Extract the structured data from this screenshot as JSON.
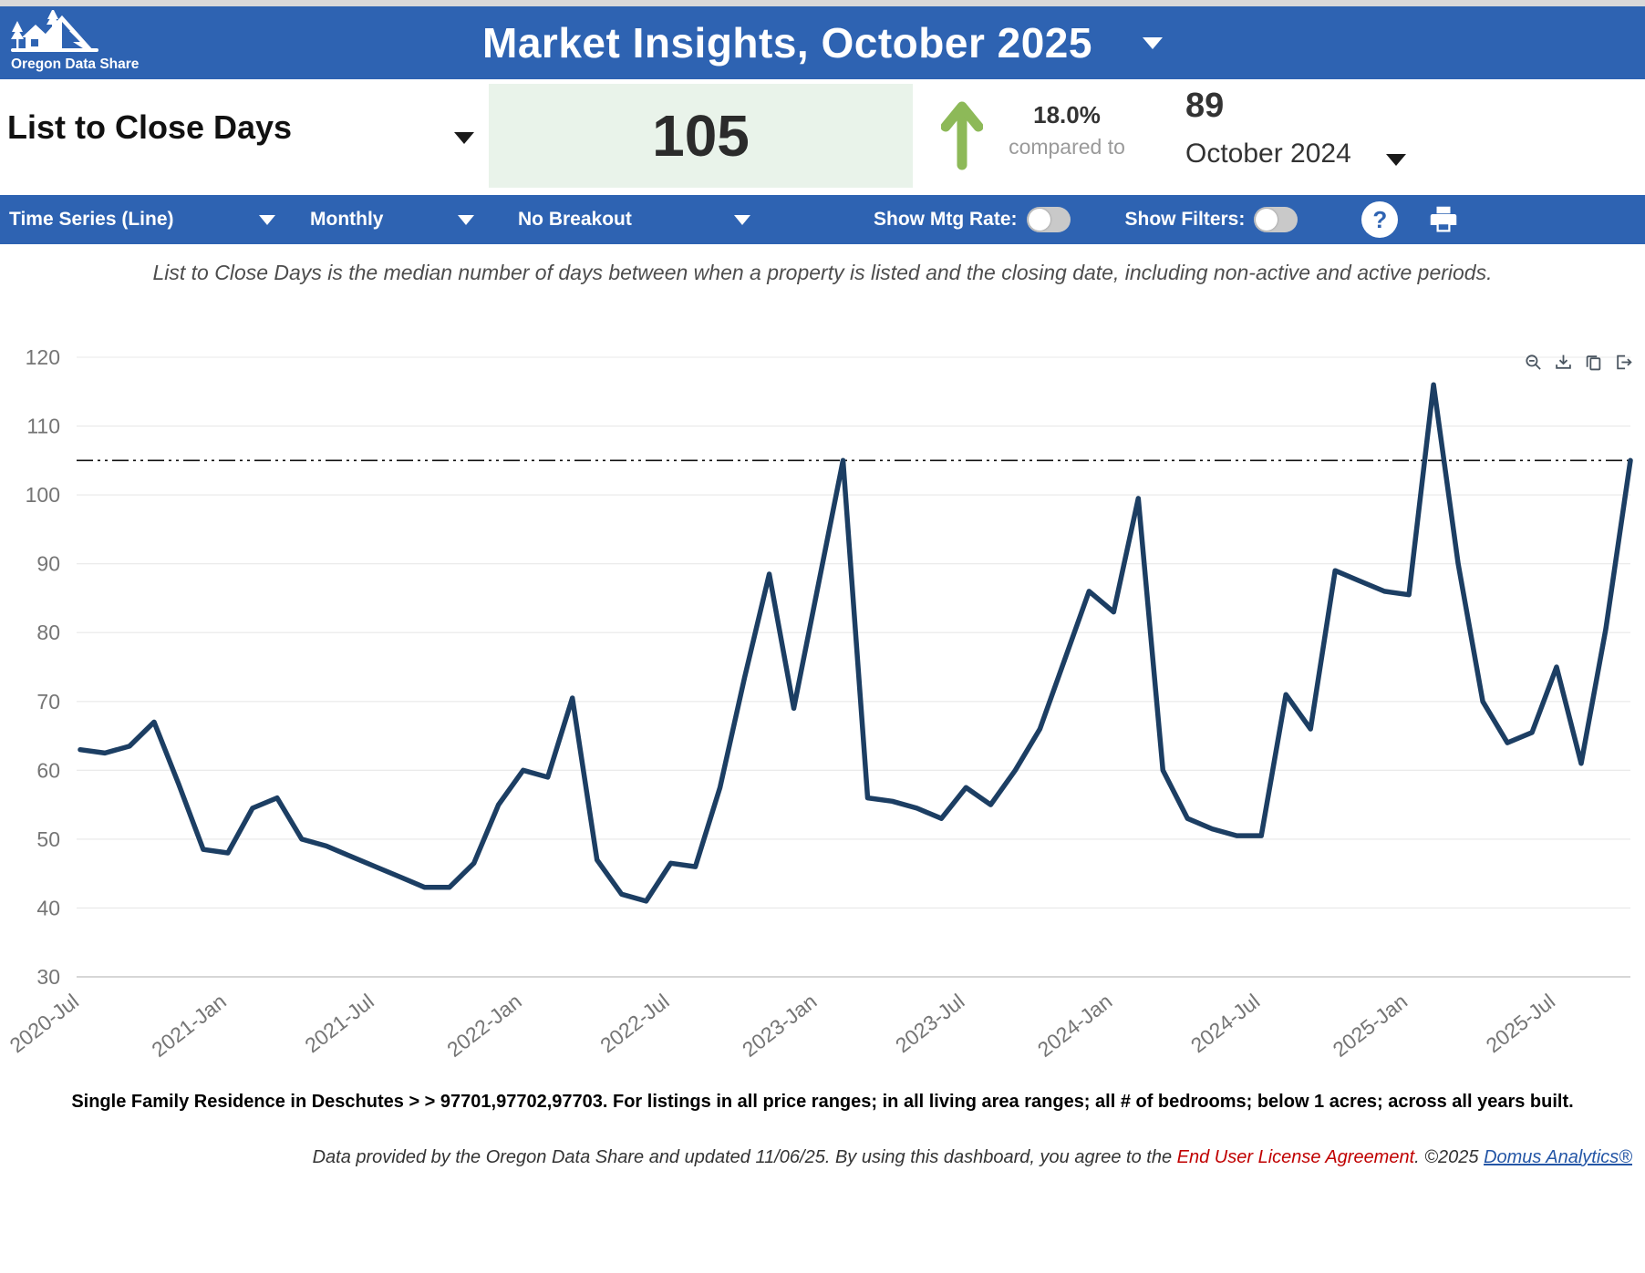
{
  "header": {
    "logo_text": "Oregon Data Share",
    "title": "Market Insights, October 2025"
  },
  "metric": {
    "name": "List to Close Days",
    "current_value": "105",
    "change_pct": "18.0%",
    "compared_label": "compared to",
    "previous_value": "89",
    "previous_period": "October 2024"
  },
  "toolbar": {
    "chart_type": "Time Series (Line)",
    "frequency": "Monthly",
    "breakout": "No Breakout",
    "show_mtg_rate_label": "Show Mtg Rate:",
    "show_filters_label": "Show Filters:",
    "help_label": "?"
  },
  "description": "List to Close Days is the median number of days between when a property is listed and the closing date, including non-active and active periods.",
  "chart_data": {
    "type": "line",
    "title": "",
    "xlabel": "",
    "ylabel": "",
    "ylim": [
      30,
      120
    ],
    "yticks": [
      30,
      40,
      50,
      60,
      70,
      80,
      90,
      100,
      110,
      120
    ],
    "grid": true,
    "legend_position": "none",
    "start_month": "2020-07",
    "x_tick_labels": [
      "2020-Jul",
      "2021-Jan",
      "2021-Jul",
      "2022-Jan",
      "2022-Jul",
      "2023-Jan",
      "2023-Jul",
      "2024-Jan",
      "2024-Jul",
      "2025-Jan",
      "2025-Jul"
    ],
    "x_tick_interval": 6,
    "reference_line_value": 105,
    "series": [
      {
        "name": "List to Close Days (median)",
        "color": "#1c3e63",
        "values": [
          63,
          62.5,
          63.5,
          67,
          58,
          48.5,
          48,
          54.5,
          56,
          50,
          49,
          47.5,
          46,
          44.5,
          43,
          43,
          46.5,
          55,
          60,
          59,
          70.5,
          47,
          42,
          41,
          46.5,
          46,
          57.5,
          73.5,
          88.5,
          69,
          87,
          105,
          56,
          55.5,
          54.5,
          53,
          57.5,
          55,
          60,
          66,
          76,
          86,
          83,
          99.5,
          60,
          53,
          51.5,
          50.5,
          50.5,
          71,
          66,
          89,
          87.5,
          86,
          85.5,
          116,
          90,
          70,
          64,
          65.5,
          75,
          61,
          80.5,
          105
        ]
      }
    ]
  },
  "chart_tools": [
    "zoom-out",
    "download",
    "copy",
    "export"
  ],
  "footnote": "Single Family Residence in Deschutes > > 97701,97702,97703. For listings in all price ranges; in all living area ranges; all # of bedrooms; below 1 acres; across all years built.",
  "footer": {
    "text_before": "Data provided by the Oregon Data Share and updated 11/06/25.  By using this dashboard, you agree to the ",
    "eula_link": "End User License Agreement",
    "text_mid": ".  ©2025 ",
    "brand_link": "Domus Analytics®"
  },
  "colors": {
    "header_blue": "#2e63b2",
    "line_navy": "#1c3e63",
    "value_box_green": "#e9f3ea",
    "trend_green": "#8db958",
    "grid_gray": "#e8e8e8",
    "axis_text": "#757575"
  }
}
